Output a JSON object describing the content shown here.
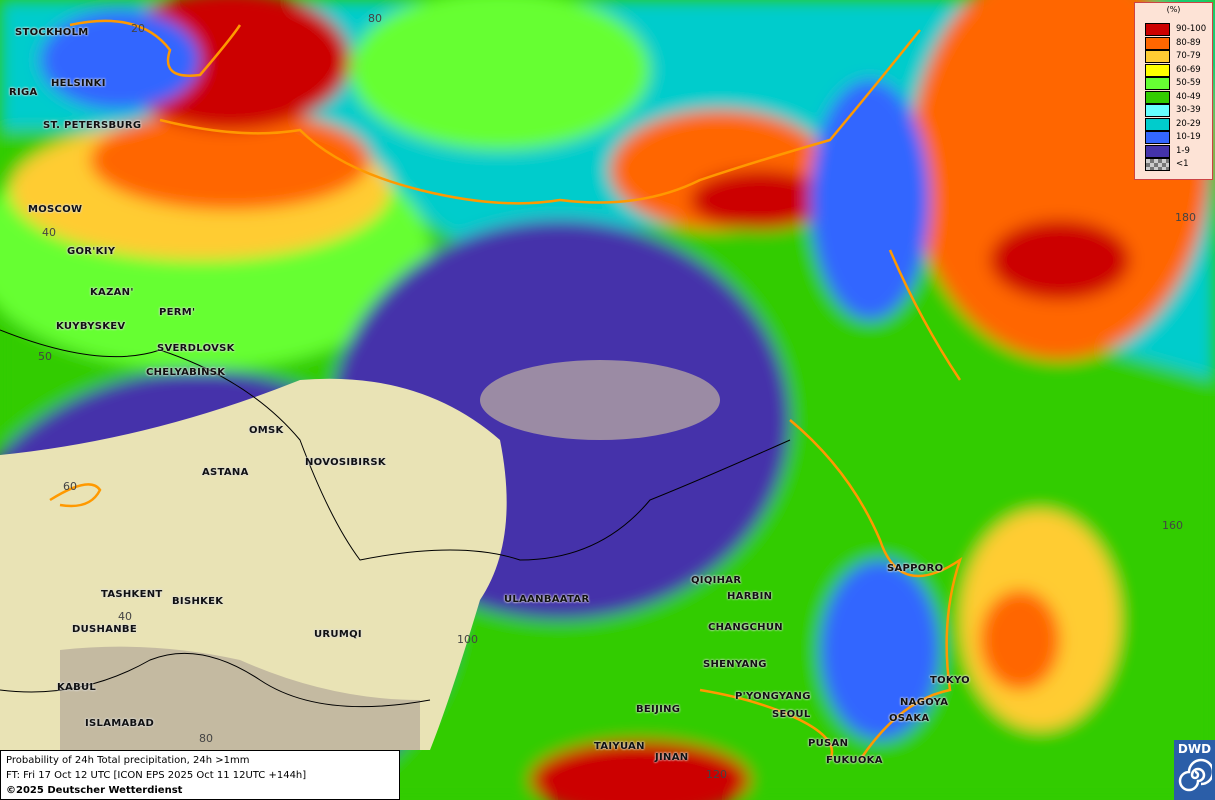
{
  "map": {
    "title": "Probability of 24h Total precipitation, 24h >1mm",
    "forecast_time": "FT: Fri 17 Oct 12 UTC [ICON EPS 2025 Oct 11 12UTC +144h]",
    "copyright": "©2025 Deutscher Wetterdienst",
    "logo_text": "DWD",
    "cities": [
      "STOCKHOLM",
      "HELSINKI",
      "RIGA",
      "ST. PETERSBURG",
      "MOSCOW",
      "GOR'KIY",
      "KAZAN'",
      "PERM'",
      "KUYBYSKEV",
      "SVERDLOVSK",
      "CHELYABINSK",
      "OMSK",
      "ASTANA",
      "NOVOSIBIRSK",
      "TASHKENT",
      "BISHKEK",
      "DUSHANBE",
      "URUMQI",
      "KABUL",
      "ISLAMABAD",
      "ULAANBAATAR",
      "QIQIHAR",
      "HARBIN",
      "CHANGCHUN",
      "SHENYANG",
      "P'YONGYANG",
      "SEOUL",
      "BEIJING",
      "TAIYUAN",
      "JINAN",
      "PUSAN",
      "FUKUOKA",
      "OSAKA",
      "NAGOYA",
      "TOKYO",
      "SAPPORO"
    ],
    "grid_labels": [
      "20",
      "80",
      "40",
      "50",
      "60",
      "40",
      "80",
      "100",
      "120",
      "160",
      "180"
    ]
  },
  "legend": {
    "unit": "(%)",
    "classes": [
      {
        "label": "90-100",
        "color": "#cc0000"
      },
      {
        "label": "80-89",
        "color": "#ff6600"
      },
      {
        "label": "70-79",
        "color": "#ffcc33"
      },
      {
        "label": "60-69",
        "color": "#ffff00"
      },
      {
        "label": "50-59",
        "color": "#66ff33"
      },
      {
        "label": "40-49",
        "color": "#33cc00"
      },
      {
        "label": "30-39",
        "color": "#66ffff"
      },
      {
        "label": "20-29",
        "color": "#00cccc"
      },
      {
        "label": "10-19",
        "color": "#3366ff"
      },
      {
        "label": "1-9",
        "color": "#4433aa"
      },
      {
        "label": "<1",
        "color": "#aaaaaa"
      }
    ]
  }
}
